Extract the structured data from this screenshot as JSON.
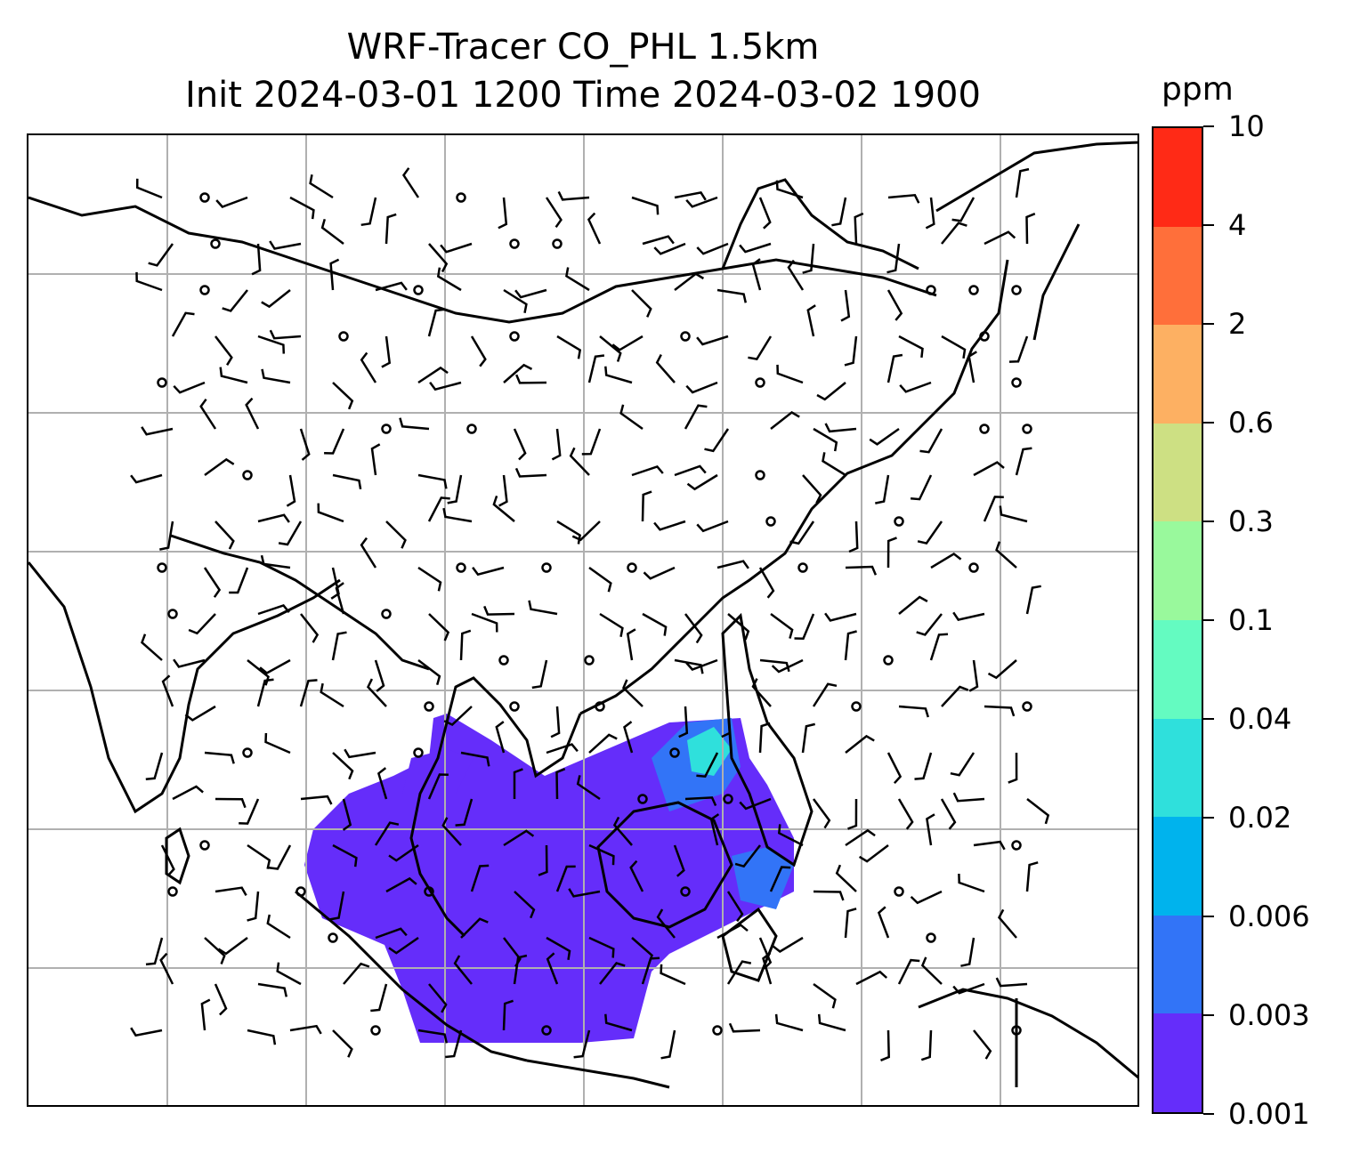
{
  "title": {
    "line1": "WRF-Tracer CO_PHL 1.5km",
    "line2": "Init 2024-03-01 1200 Time 2024-03-02 1900"
  },
  "colorbar": {
    "unit": "ppm",
    "levels": [
      "10",
      "4",
      "2",
      "0.6",
      "0.3",
      "0.1",
      "0.04",
      "0.02",
      "0.006",
      "0.003",
      "0.001"
    ],
    "colors_top_to_bottom": [
      "#ff2a16",
      "#ff6f3a",
      "#fdb062",
      "#cde083",
      "#99f99c",
      "#64fbc1",
      "#2fe0dc",
      "#00b3ed",
      "#3274f7",
      "#652dfa"
    ]
  },
  "map": {
    "plume_color": "#652dfa",
    "plume_core_color": "#3274f7",
    "plume_peak_color": "#2fe0dc",
    "coastline_color": "#000000",
    "gridline_color": "#b0b0b0",
    "calm_marker": "calm-circle-icon",
    "wind_marker": "wind-barb-icon"
  }
}
